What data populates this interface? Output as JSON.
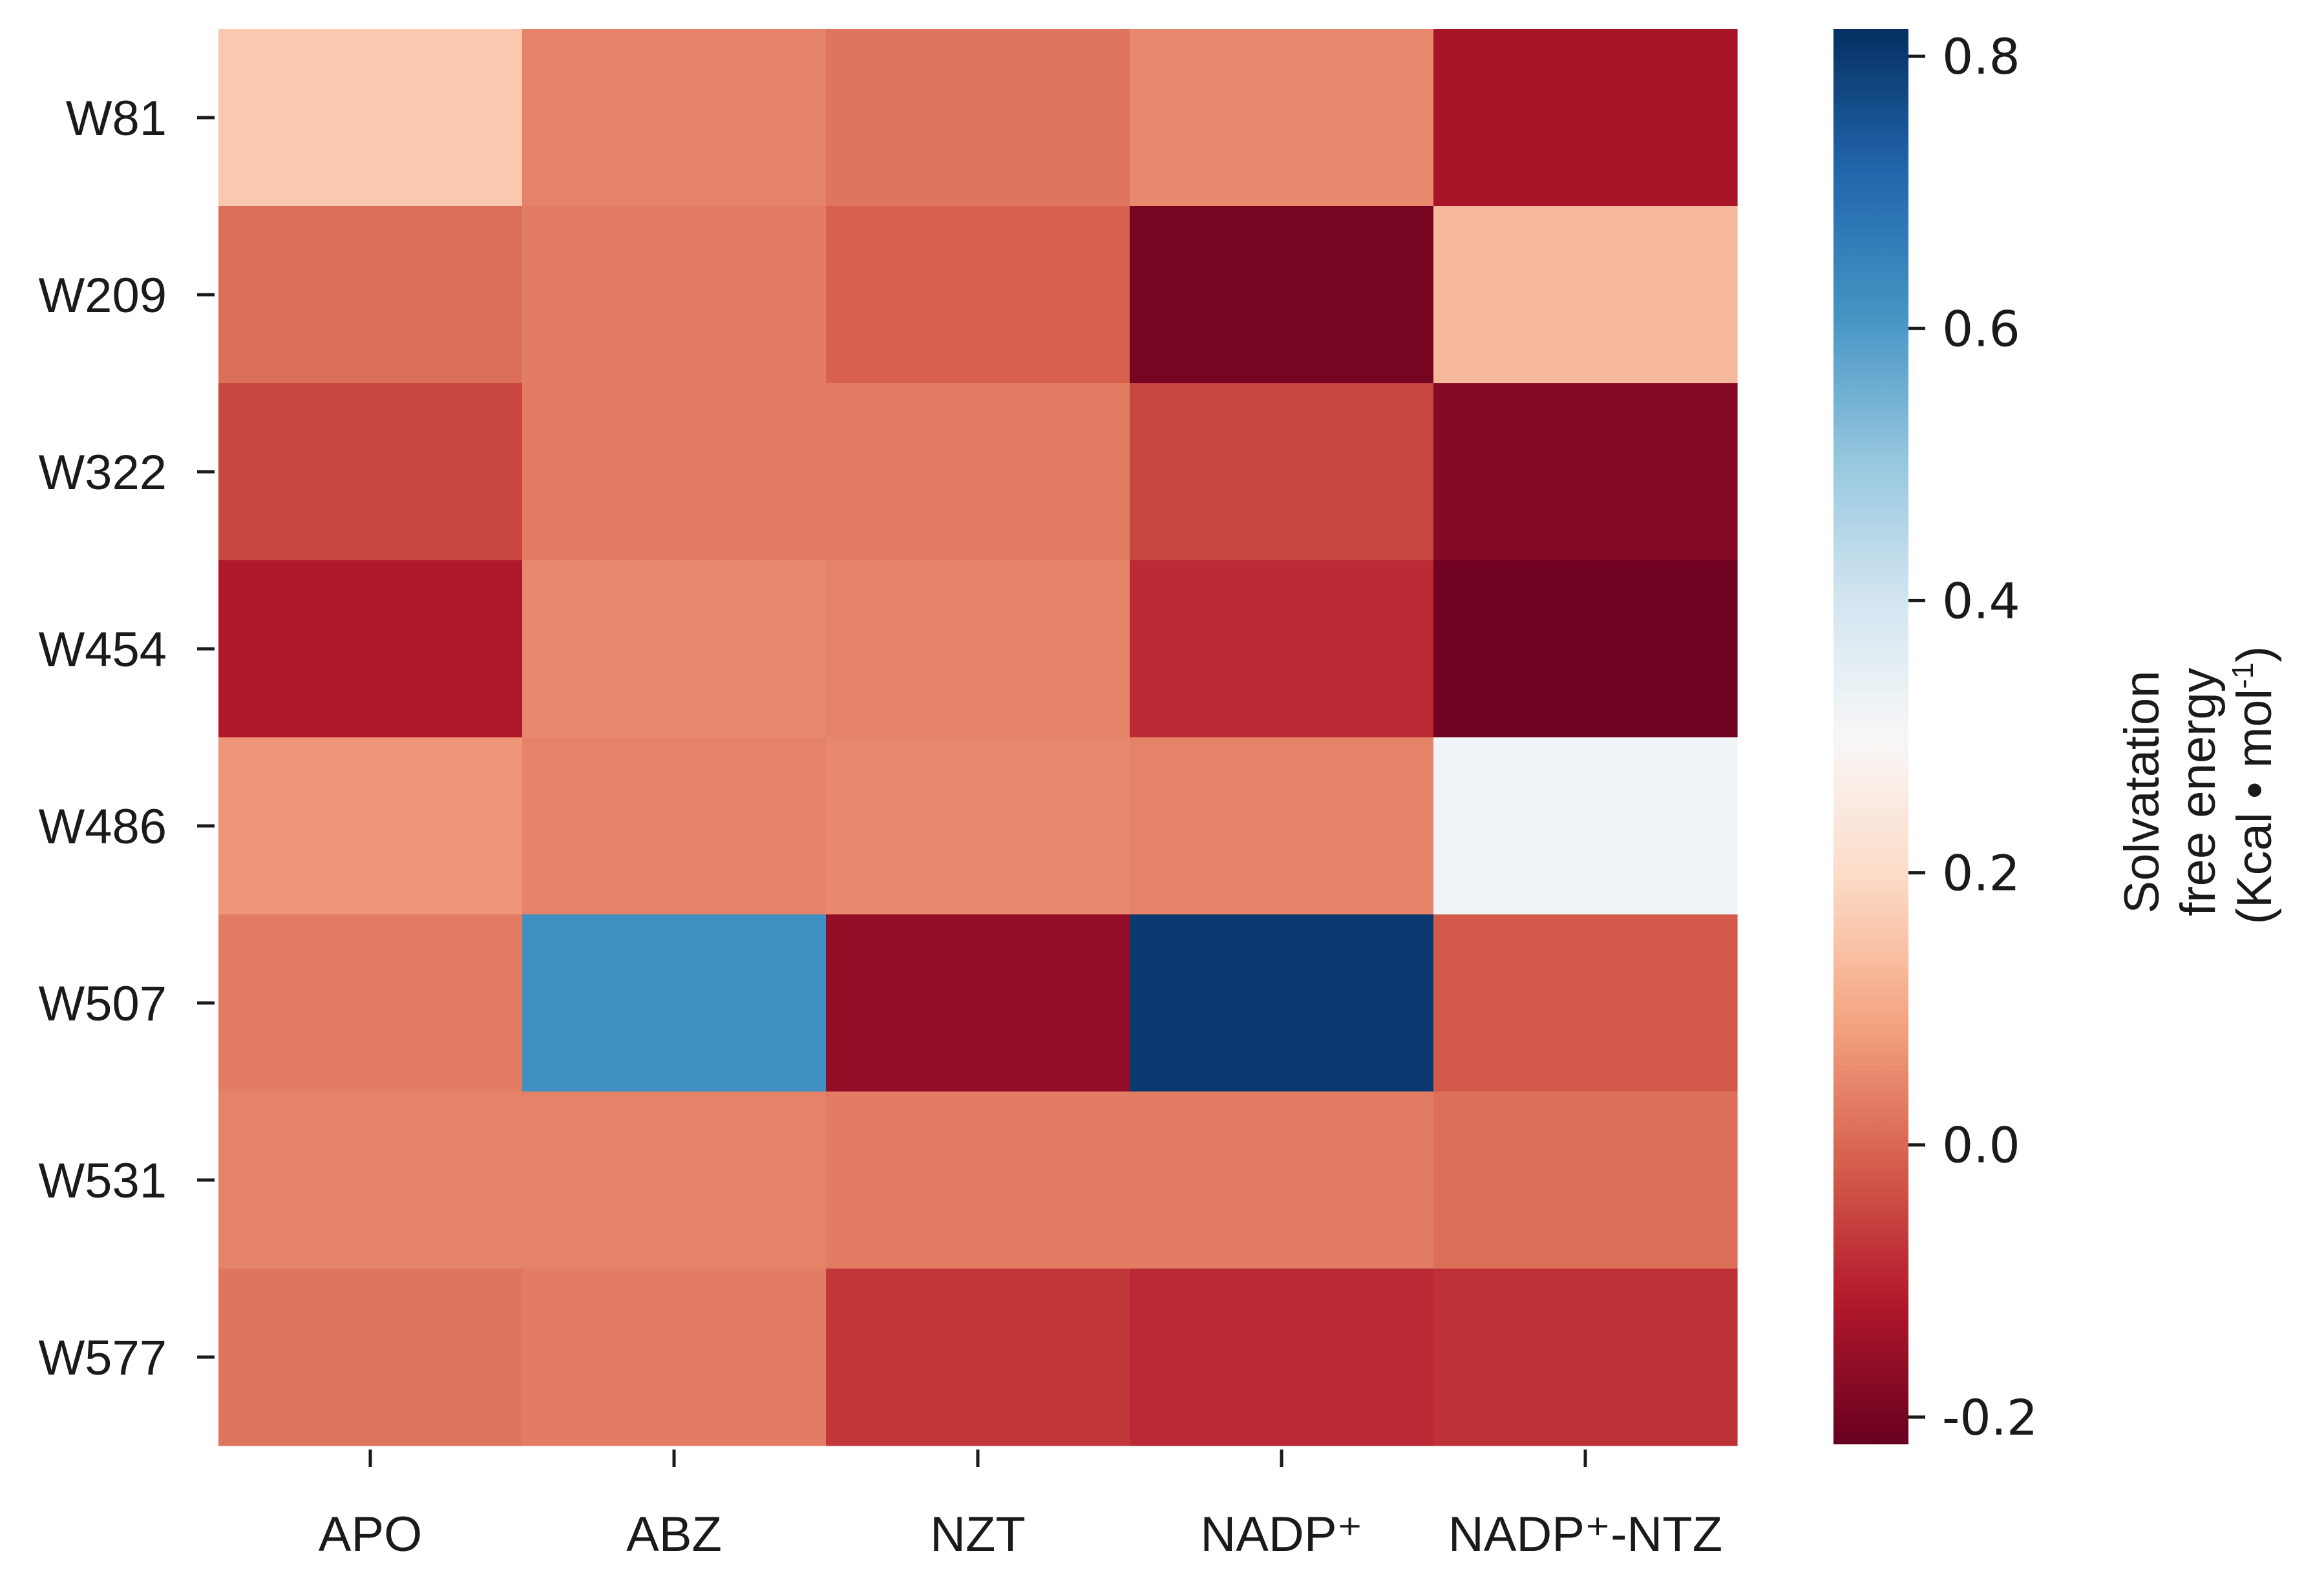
{
  "chart_data": {
    "type": "heatmap",
    "title": "",
    "columns": [
      "APO",
      "ABZ",
      "NZT",
      "NADP⁺",
      "NADP⁺-NTZ"
    ],
    "rows": [
      "W81",
      "W209",
      "W322",
      "W454",
      "W486",
      "W507",
      "W531",
      "W577"
    ],
    "values": [
      [
        0.16,
        0.04,
        0.02,
        0.05,
        -0.13
      ],
      [
        0.01,
        0.03,
        -0.01,
        -0.2,
        0.13
      ],
      [
        -0.05,
        0.03,
        0.03,
        -0.05,
        -0.18
      ],
      [
        -0.12,
        0.05,
        0.04,
        -0.09,
        -0.21
      ],
      [
        0.07,
        0.04,
        0.05,
        0.04,
        0.32
      ],
      [
        0.03,
        0.62,
        -0.16,
        0.8,
        -0.02
      ],
      [
        0.04,
        0.04,
        0.03,
        0.03,
        0.01
      ],
      [
        0.02,
        0.03,
        -0.07,
        -0.09,
        -0.08
      ]
    ],
    "colorbar": {
      "min": -0.22,
      "max": 0.82,
      "ticks": [
        -0.2,
        0.0,
        0.2,
        0.4,
        0.6,
        0.8
      ],
      "tick_labels": [
        "-0.2",
        "0.0",
        "0.2",
        "0.4",
        "0.6",
        "0.8"
      ],
      "colormap": "RdBu",
      "label": {
        "line1": "Solvatation",
        "line2": "free energy",
        "line3_prefix": "(Kcal",
        "line3_mid": "mol",
        "line3_sup": "-1",
        "line3_suffix": ")"
      }
    }
  },
  "colors": {
    "stops": [
      "#67001f",
      "#b2182b",
      "#d6604d",
      "#f4a582",
      "#fddbc7",
      "#f7f7f7",
      "#d1e5f0",
      "#92c5de",
      "#4393c3",
      "#2166ac",
      "#053061"
    ]
  }
}
